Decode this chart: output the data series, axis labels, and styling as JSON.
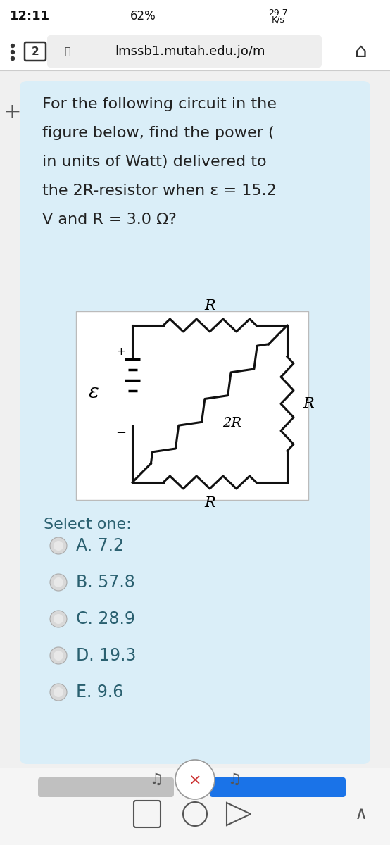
{
  "bg_color": "#f0f0f0",
  "status_time": "12:11",
  "status_battery": "62%",
  "url_text": "lmssb1.mutah.edu.jo/m",
  "card_color": "#daeef8",
  "question_lines": [
    "For the following circuit in the",
    "figure below, find the power (",
    "in units of Watt) delivered to",
    "the 2R-resistor when ε = 15.2",
    "V and R = 3.0 Ω?"
  ],
  "select_label": "Select one:",
  "options": [
    "A. 7.2",
    "B. 57.8",
    "C. 28.9",
    "D. 19.3",
    "E. 9.6"
  ],
  "text_dark": "#2a6070",
  "text_black": "#222222",
  "wire_color": "#111111",
  "circuit_bg": "#ffffff",
  "radio_fill": "#d8d8d8",
  "radio_edge": "#aaaaaa",
  "nav_bg": "#f5f5f5",
  "blue_btn": "#1a73e8",
  "gray_btn": "#c0c0c0"
}
